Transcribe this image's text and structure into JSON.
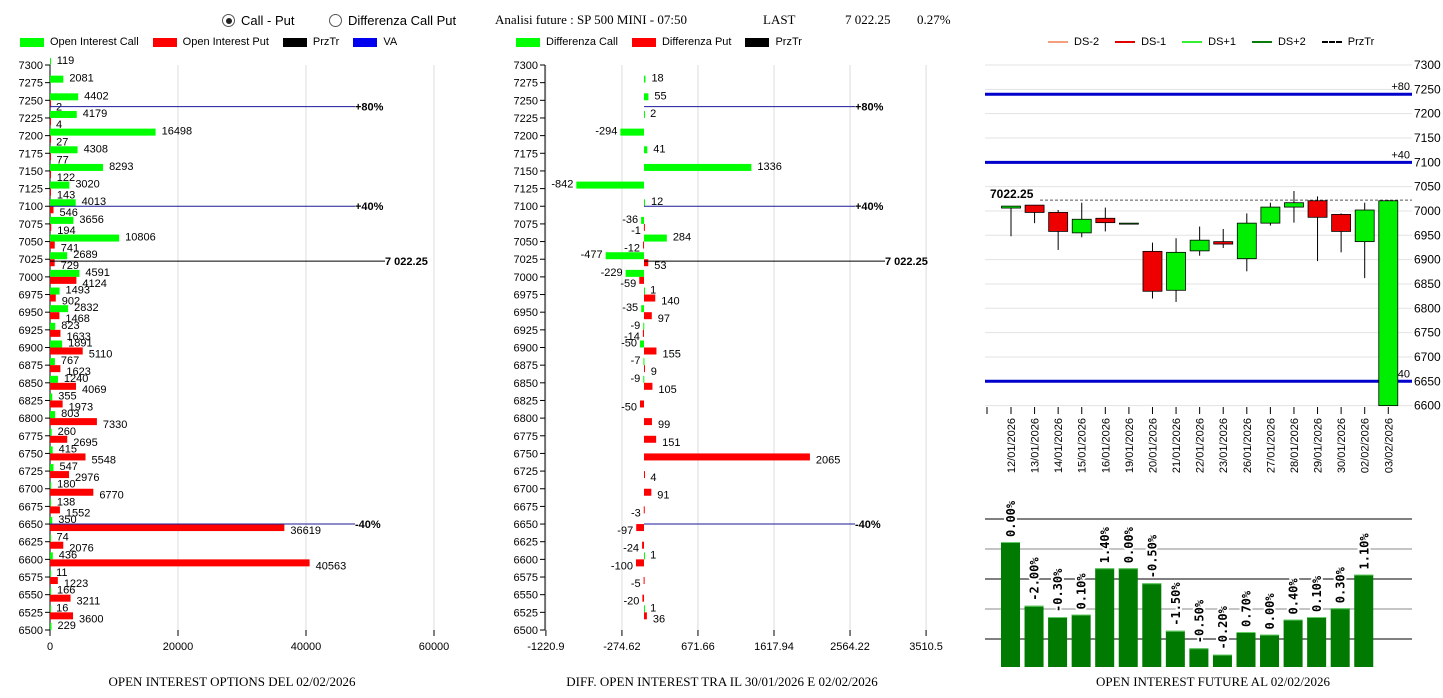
{
  "header": {
    "radio_options": [
      {
        "label": "Call - Put",
        "selected": true
      },
      {
        "label": "Differenza Call Put",
        "selected": false
      }
    ],
    "title": "Analisi future : SP 500 MINI - 07:50",
    "last_label": "LAST",
    "last_value": "7 022.25",
    "change": "0.27%"
  },
  "colors": {
    "call": "#00ff00",
    "put": "#ff0000",
    "przTr": "#000000",
    "va": "#0000cc",
    "future_bar": "#007a00"
  },
  "chart_data": [
    {
      "type": "bar",
      "orientation": "horizontal",
      "title": "OPEN INTEREST OPTIONS DEL 02/02/2026",
      "legend": [
        "Open Interest Call",
        "Open Interest Put",
        "PrzTr",
        "VA"
      ],
      "legend_placement": "top",
      "xlim": [
        0,
        60000
      ],
      "xticks": [
        "0",
        "20000",
        "40000",
        "60000"
      ],
      "grid": true,
      "categories": [
        7300,
        7275,
        7250,
        7225,
        7200,
        7175,
        7150,
        7125,
        7100,
        7075,
        7050,
        7025,
        7000,
        6975,
        6950,
        6925,
        6900,
        6875,
        6850,
        6825,
        6800,
        6775,
        6750,
        6725,
        6700,
        6675,
        6650,
        6625,
        6600,
        6575,
        6550,
        6525,
        6500
      ],
      "series": [
        {
          "name": "Open Interest Call",
          "values": [
            119,
            2081,
            4402,
            4179,
            16498,
            4308,
            8293,
            3020,
            4013,
            3656,
            10806,
            2689,
            4591,
            1493,
            2832,
            823,
            1891,
            767,
            1240,
            355,
            803,
            260,
            415,
            547,
            180,
            138,
            350,
            74,
            436,
            11,
            166,
            16,
            229
          ]
        },
        {
          "name": "Open Interest Put",
          "values": [
            null,
            null,
            2,
            4,
            27,
            77,
            122,
            143,
            546,
            194,
            741,
            729,
            4124,
            902,
            1468,
            1633,
            5110,
            1623,
            4069,
            1973,
            7330,
            2695,
            5548,
            2976,
            6770,
            1552,
            36619,
            2076,
            40563,
            1223,
            3211,
            3600,
            null
          ]
        }
      ],
      "levels": [
        {
          "label": "+80%",
          "price": 7241,
          "kind": "VA"
        },
        {
          "label": "+40%",
          "price": 7100,
          "kind": "VA"
        },
        {
          "label": "-40%",
          "price": 6650,
          "kind": "VA"
        },
        {
          "label": "7 022.25",
          "price": 7022.25,
          "kind": "PrzTr"
        }
      ]
    },
    {
      "type": "bar",
      "orientation": "horizontal",
      "title": "DIFF. OPEN INTEREST TRA IL 30/01/2026 E 02/02/2026",
      "legend": [
        "Differenza Call",
        "Differenza Put",
        "PrzTr"
      ],
      "legend_placement": "top",
      "xlim": [
        -1220.9,
        3510.5
      ],
      "xticks": [
        "-1220.9",
        "-274.62",
        "671.66",
        "1617.94",
        "2564.22",
        "3510.5"
      ],
      "grid": true,
      "categories": [
        7300,
        7275,
        7250,
        7225,
        7200,
        7175,
        7150,
        7125,
        7100,
        7075,
        7050,
        7025,
        7000,
        6975,
        6950,
        6925,
        6900,
        6875,
        6850,
        6825,
        6800,
        6775,
        6750,
        6725,
        6700,
        6675,
        6650,
        6625,
        6600,
        6575,
        6550,
        6525,
        6500
      ],
      "series": [
        {
          "name": "Differenza Call",
          "values": [
            null,
            18,
            55,
            2,
            -294,
            41,
            1336,
            -842,
            12,
            -36,
            284,
            -477,
            -229,
            1,
            -35,
            -9,
            -50,
            -7,
            -9,
            null,
            null,
            null,
            null,
            null,
            null,
            null,
            null,
            null,
            1,
            null,
            null,
            1,
            null
          ]
        },
        {
          "name": "Differenza Put",
          "values": [
            null,
            null,
            null,
            null,
            null,
            null,
            null,
            null,
            null,
            -1,
            -12,
            53,
            -59,
            140,
            97,
            -14,
            155,
            9,
            105,
            -50,
            99,
            151,
            2065,
            4,
            91,
            -3,
            -97,
            -24,
            -100,
            -5,
            -20,
            36,
            null
          ]
        }
      ],
      "levels": [
        {
          "label": "+80%",
          "price": 7241,
          "kind": "VA"
        },
        {
          "label": "+40%",
          "price": 7100,
          "kind": "VA"
        },
        {
          "label": "-40%",
          "price": 6650,
          "kind": "VA"
        },
        {
          "label": "7 022.25",
          "price": 7022.25,
          "kind": "PrzTr"
        }
      ]
    },
    {
      "type": "candlestick",
      "legend": [
        "DS-2",
        "DS-1",
        "DS+1",
        "DS+2",
        "PrzTr"
      ],
      "legend_colors": [
        "#f4a07a",
        "#e00000",
        "#33ee33",
        "#0a7a0a",
        "#000000"
      ],
      "legend_placement": "top",
      "ylim": [
        6600,
        7300
      ],
      "yticks": [
        "7300",
        "7250",
        "7200",
        "7150",
        "7100",
        "7050",
        "7000",
        "6950",
        "6900",
        "6850",
        "6800",
        "6750",
        "6700",
        "6650",
        "6600"
      ],
      "grid": true,
      "last_label": "7022.25",
      "last_price": 7022.25,
      "levels": [
        {
          "label": "+80",
          "price": 7240
        },
        {
          "label": "+40",
          "price": 7100
        },
        {
          "label": "-40",
          "price": 6650
        }
      ],
      "candles": [
        {
          "date": "12/01/2026",
          "open": 7006,
          "high": 7010,
          "low": 6948,
          "close": 7010
        },
        {
          "date": "13/01/2026",
          "open": 7012,
          "high": 7012,
          "low": 6975,
          "close": 6997
        },
        {
          "date": "14/01/2026",
          "open": 6997,
          "high": 7002,
          "low": 6920,
          "close": 6958
        },
        {
          "date": "15/01/2026",
          "open": 6955,
          "high": 7017,
          "low": 6946,
          "close": 6983
        },
        {
          "date": "16/01/2026",
          "open": 6985,
          "high": 7007,
          "low": 6958,
          "close": 6976
        },
        {
          "date": "19/01/2026",
          "open": 6975,
          "high": 6975,
          "low": 6975,
          "close": 6975
        },
        {
          "date": "20/01/2026",
          "open": 6917,
          "high": 6935,
          "low": 6820,
          "close": 6835
        },
        {
          "date": "21/01/2026",
          "open": 6837,
          "high": 6944,
          "low": 6813,
          "close": 6915
        },
        {
          "date": "22/01/2026",
          "open": 6918,
          "high": 6968,
          "low": 6908,
          "close": 6940
        },
        {
          "date": "23/01/2026",
          "open": 6937,
          "high": 6963,
          "low": 6924,
          "close": 6932
        },
        {
          "date": "26/01/2026",
          "open": 6902,
          "high": 6995,
          "low": 6876,
          "close": 6975
        },
        {
          "date": "27/01/2026",
          "open": 6975,
          "high": 7017,
          "low": 6970,
          "close": 7008
        },
        {
          "date": "28/01/2026",
          "open": 7008,
          "high": 7041,
          "low": 6976,
          "close": 7017
        },
        {
          "date": "29/01/2026",
          "open": 7021,
          "high": 7030,
          "low": 6897,
          "close": 6987
        },
        {
          "date": "30/01/2026",
          "open": 6993,
          "high": 6995,
          "low": 6915,
          "close": 6958
        },
        {
          "date": "02/02/2026",
          "open": 6937,
          "high": 7017,
          "low": 6862,
          "close": 7002
        },
        {
          "date": "03/02/2026",
          "open": 6600,
          "high": 7022.25,
          "low": 6600,
          "close": 7021
        }
      ]
    },
    {
      "type": "bar",
      "title": "OPEN INTEREST FUTURE AL 02/02/2026",
      "grid": true,
      "categories": [
        "12/01/2026",
        "13/01/2026",
        "14/01/2026",
        "15/01/2026",
        "16/01/2026",
        "19/01/2026",
        "20/01/2026",
        "21/01/2026",
        "22/01/2026",
        "23/01/2026",
        "26/01/2026",
        "27/01/2026",
        "28/01/2026",
        "29/01/2026",
        "30/01/2026",
        "02/02/2026"
      ],
      "data_labels": [
        "0.00%",
        "-2.00%",
        "-0.30%",
        "0.10%",
        "1.40%",
        "0.00%",
        "-0.50%",
        "-1.50%",
        "-0.50%",
        "-0.20%",
        "0.70%",
        "0.00%",
        "0.40%",
        "0.10%",
        "0.30%",
        "1.10%"
      ],
      "relative_level_pct": [
        100,
        49,
        40,
        42,
        79,
        79,
        67,
        29,
        15,
        10,
        28,
        26,
        38,
        40,
        47,
        74
      ]
    }
  ]
}
